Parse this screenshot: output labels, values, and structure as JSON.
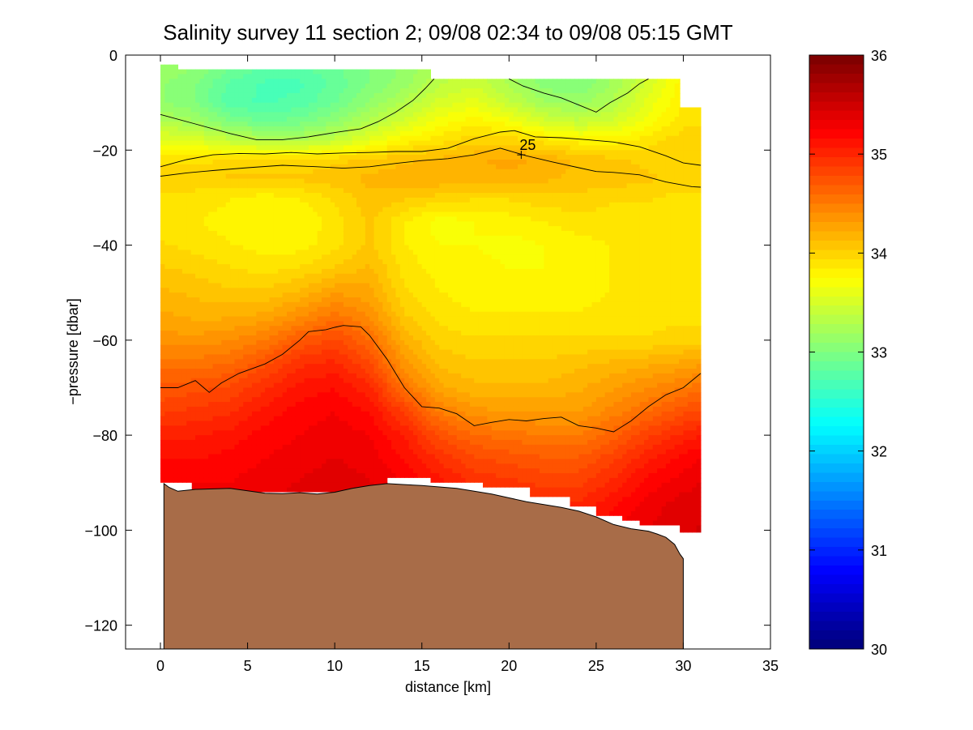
{
  "chart_data": {
    "type": "heatmap",
    "title": "Salinity survey 11 section 2; 09/08 02:34 to 09/08 05:15 GMT",
    "xlabel": "distance [km]",
    "ylabel": "−pressure [dbar]",
    "xlim": [
      -2,
      35
    ],
    "ylim": [
      -125,
      0
    ],
    "x_ticks": [
      0,
      5,
      10,
      15,
      20,
      25,
      30,
      35
    ],
    "y_ticks": [
      0,
      -20,
      -40,
      -60,
      -80,
      -100,
      -120
    ],
    "grid": false,
    "colorbar": {
      "range": [
        30,
        36
      ],
      "ticks": [
        30,
        31,
        32,
        33,
        34,
        35,
        36
      ],
      "colormap": "jet",
      "placement": "right"
    },
    "contour_label": {
      "text": "25",
      "x": 20.7,
      "y": -21
    },
    "contour_lines": [
      {
        "points": [
          [
            0,
            -12.5
          ],
          [
            2,
            -14.5
          ],
          [
            4,
            -16.5
          ],
          [
            5.5,
            -17.8
          ],
          [
            7,
            -17.8
          ],
          [
            8.5,
            -17.2
          ],
          [
            10,
            -16.3
          ],
          [
            11.5,
            -15.5
          ],
          [
            12.5,
            -14
          ],
          [
            13.5,
            -12
          ],
          [
            14.5,
            -9.5
          ],
          [
            15.2,
            -7
          ],
          [
            15.7,
            -5
          ]
        ]
      },
      {
        "points": [
          [
            20,
            -5
          ],
          [
            20.8,
            -6.5
          ],
          [
            22,
            -8
          ],
          [
            23,
            -9
          ],
          [
            24,
            -10.5
          ],
          [
            25,
            -12
          ],
          [
            25.8,
            -10
          ],
          [
            26.8,
            -8
          ],
          [
            27.5,
            -6
          ],
          [
            28,
            -5
          ]
        ]
      },
      {
        "points": [
          [
            0,
            -23.5
          ],
          [
            1.5,
            -22
          ],
          [
            3,
            -21
          ],
          [
            4.5,
            -20.7
          ],
          [
            6,
            -20.8
          ],
          [
            7.5,
            -20.5
          ],
          [
            9,
            -20.8
          ],
          [
            10.5,
            -20.6
          ],
          [
            12,
            -20.5
          ],
          [
            13.5,
            -20.3
          ],
          [
            15,
            -20.3
          ],
          [
            16.5,
            -19.6
          ],
          [
            18,
            -17.6
          ],
          [
            19.5,
            -16.2
          ],
          [
            20.3,
            -15.9
          ],
          [
            21.5,
            -17.2
          ],
          [
            23,
            -17.4
          ],
          [
            24.5,
            -17.8
          ],
          [
            26,
            -18.3
          ],
          [
            27.5,
            -19.3
          ],
          [
            29,
            -21.2
          ],
          [
            30,
            -22.7
          ],
          [
            31,
            -23.2
          ]
        ]
      },
      {
        "points": [
          [
            0,
            -25.5
          ],
          [
            1.5,
            -24.8
          ],
          [
            3,
            -24.3
          ],
          [
            5,
            -23.7
          ],
          [
            7,
            -23.2
          ],
          [
            9,
            -23.5
          ],
          [
            10.5,
            -23.8
          ],
          [
            12,
            -23.5
          ],
          [
            13.5,
            -22.8
          ],
          [
            15,
            -22.2
          ],
          [
            16.5,
            -21.8
          ],
          [
            18,
            -21
          ],
          [
            19.5,
            -19.6
          ],
          [
            21,
            -21.2
          ],
          [
            22.5,
            -22.5
          ],
          [
            24,
            -23.7
          ],
          [
            25,
            -24.5
          ],
          [
            26,
            -24.7
          ],
          [
            27.5,
            -25.2
          ],
          [
            29,
            -26.7
          ],
          [
            30.5,
            -27.7
          ],
          [
            31,
            -27.8
          ]
        ]
      },
      {
        "points": [
          [
            0,
            -70
          ],
          [
            1,
            -70
          ],
          [
            2,
            -68.5
          ],
          [
            2.8,
            -71
          ],
          [
            3.5,
            -69
          ],
          [
            4.5,
            -67
          ],
          [
            6,
            -65
          ],
          [
            7,
            -63
          ],
          [
            8,
            -60
          ],
          [
            8.5,
            -58.2
          ],
          [
            9.5,
            -57.8
          ],
          [
            10,
            -57.3
          ],
          [
            10.5,
            -56.9
          ],
          [
            11.5,
            -57.2
          ],
          [
            12,
            -59
          ],
          [
            13,
            -64
          ],
          [
            14,
            -70
          ],
          [
            15,
            -74
          ],
          [
            16,
            -74.3
          ],
          [
            17,
            -75.5
          ],
          [
            18,
            -78
          ],
          [
            19,
            -77.3
          ],
          [
            20,
            -76.7
          ],
          [
            21,
            -77
          ],
          [
            22,
            -76.5
          ],
          [
            23,
            -76.2
          ],
          [
            24,
            -78
          ],
          [
            25,
            -78.5
          ],
          [
            26,
            -79.3
          ],
          [
            27,
            -77
          ],
          [
            28,
            -74
          ],
          [
            29,
            -71.5
          ],
          [
            30,
            -70
          ],
          [
            31,
            -67
          ]
        ]
      }
    ],
    "bathymetry": {
      "fill_color": "#a86c48",
      "bottom_depth": -125,
      "points": [
        [
          0.2,
          -90.2
        ],
        [
          0.5,
          -91
        ],
        [
          1,
          -91.8
        ],
        [
          2,
          -91.4
        ],
        [
          3,
          -91.3
        ],
        [
          4,
          -91.2
        ],
        [
          5,
          -91.7
        ],
        [
          6,
          -92.2
        ],
        [
          7,
          -92.3
        ],
        [
          8,
          -92.1
        ],
        [
          9,
          -92.4
        ],
        [
          10,
          -92.0
        ],
        [
          11,
          -91.2
        ],
        [
          12,
          -90.6
        ],
        [
          13,
          -90.2
        ],
        [
          14,
          -90.4
        ],
        [
          15,
          -90.6
        ],
        [
          16,
          -90.9
        ],
        [
          17,
          -91.2
        ],
        [
          18,
          -91.8
        ],
        [
          19,
          -92.4
        ],
        [
          20,
          -93.2
        ],
        [
          21,
          -94.0
        ],
        [
          22,
          -94.6
        ],
        [
          23,
          -95.2
        ],
        [
          24,
          -96.0
        ],
        [
          25,
          -97.2
        ],
        [
          26,
          -98.8
        ],
        [
          27,
          -99.7
        ],
        [
          28,
          -100.2
        ],
        [
          28.5,
          -100.8
        ],
        [
          29,
          -101.5
        ],
        [
          29.5,
          -103
        ],
        [
          29.8,
          -105
        ],
        [
          30,
          -106
        ]
      ]
    },
    "data_domain": {
      "columns": [
        {
          "x0": 0,
          "x1": 1,
          "top": -2,
          "bottom": -90
        },
        {
          "x0": 1,
          "x1": 1.8,
          "top": -3,
          "bottom": -90
        },
        {
          "x0": 1.8,
          "x1": 13,
          "top": -3,
          "bottom": -92
        },
        {
          "x0": 13,
          "x1": 15.5,
          "top": -3,
          "bottom": -89
        },
        {
          "x0": 15.5,
          "x1": 18.5,
          "top": -5,
          "bottom": -90
        },
        {
          "x0": 18.5,
          "x1": 21.2,
          "top": -5,
          "bottom": -91
        },
        {
          "x0": 21.2,
          "x1": 23.5,
          "top": -5,
          "bottom": -93
        },
        {
          "x0": 23.5,
          "x1": 25,
          "top": -5,
          "bottom": -95
        },
        {
          "x0": 25,
          "x1": 26.5,
          "top": -5,
          "bottom": -97
        },
        {
          "x0": 26.5,
          "x1": 27.5,
          "top": -5,
          "bottom": -98
        },
        {
          "x0": 27.5,
          "x1": 29.8,
          "top": -5,
          "bottom": -99
        },
        {
          "x0": 29.8,
          "x1": 31,
          "top": -11,
          "bottom": -100.5
        }
      ]
    },
    "salinity_field": {
      "x": [
        0,
        2,
        4,
        6,
        8,
        10,
        12,
        14,
        16,
        18,
        20,
        22,
        24,
        26,
        28,
        30,
        31
      ],
      "y": [
        -2,
        -6,
        -10,
        -14,
        -18,
        -22,
        -26,
        -30,
        -35,
        -40,
        -45,
        -50,
        -55,
        -60,
        -65,
        -70,
        -75,
        -80,
        -85,
        -90,
        -95,
        -100
      ],
      "values": [
        [
          33.2,
          33.1,
          32.95,
          32.8,
          32.8,
          32.9,
          33.0,
          33.1,
          33.3,
          33.4,
          33.2,
          33.0,
          33.0,
          33.2,
          33.5,
          33.8,
          33.9
        ],
        [
          33.1,
          33.0,
          32.8,
          32.7,
          32.7,
          32.85,
          33.0,
          33.15,
          33.35,
          33.45,
          33.25,
          33.05,
          33.0,
          33.2,
          33.5,
          33.8,
          33.9
        ],
        [
          33.1,
          33.0,
          32.75,
          32.7,
          32.75,
          32.9,
          33.1,
          33.3,
          33.5,
          33.6,
          33.4,
          33.2,
          33.15,
          33.3,
          33.6,
          33.85,
          33.9
        ],
        [
          33.3,
          33.2,
          33.0,
          32.9,
          32.95,
          33.1,
          33.3,
          33.5,
          33.7,
          33.8,
          33.7,
          33.5,
          33.4,
          33.5,
          33.7,
          33.9,
          33.9
        ],
        [
          33.6,
          33.55,
          33.4,
          33.3,
          33.3,
          33.4,
          33.6,
          33.8,
          33.9,
          34.0,
          34.0,
          33.9,
          33.8,
          33.8,
          33.9,
          34.0,
          34.0
        ],
        [
          33.9,
          33.9,
          33.95,
          33.95,
          33.95,
          34.0,
          34.05,
          34.1,
          34.15,
          34.2,
          34.25,
          34.2,
          34.1,
          34.05,
          34.0,
          34.0,
          34.0
        ],
        [
          34.0,
          34.0,
          34.05,
          34.05,
          34.05,
          34.1,
          34.15,
          34.2,
          34.2,
          34.2,
          34.2,
          34.15,
          34.1,
          34.1,
          34.05,
          34.0,
          34.0
        ],
        [
          33.9,
          33.9,
          33.85,
          33.8,
          33.85,
          33.95,
          34.1,
          34.05,
          34.0,
          33.95,
          33.95,
          34.0,
          34.0,
          33.95,
          33.95,
          33.9,
          33.9
        ],
        [
          33.9,
          33.85,
          33.8,
          33.75,
          33.75,
          33.9,
          34.05,
          33.85,
          33.7,
          33.75,
          33.8,
          33.85,
          33.9,
          33.9,
          33.9,
          33.85,
          33.85
        ],
        [
          33.95,
          33.9,
          33.85,
          33.8,
          33.8,
          33.9,
          34.05,
          33.85,
          33.75,
          33.75,
          33.7,
          33.75,
          33.8,
          33.85,
          33.85,
          33.85,
          33.85
        ],
        [
          34.05,
          34.0,
          33.95,
          33.9,
          33.95,
          34.05,
          34.15,
          33.9,
          33.8,
          33.8,
          33.75,
          33.75,
          33.8,
          33.85,
          33.85,
          33.85,
          33.85
        ],
        [
          34.15,
          34.1,
          34.05,
          34.05,
          34.15,
          34.3,
          34.25,
          33.95,
          33.85,
          33.8,
          33.8,
          33.8,
          33.8,
          33.85,
          33.85,
          33.85,
          33.85
        ],
        [
          34.25,
          34.2,
          34.2,
          34.25,
          34.4,
          34.55,
          34.4,
          34.05,
          33.9,
          33.85,
          33.85,
          33.85,
          33.85,
          33.9,
          33.9,
          33.9,
          33.9
        ],
        [
          34.35,
          34.35,
          34.4,
          34.5,
          34.7,
          34.8,
          34.6,
          34.2,
          34.0,
          33.95,
          33.95,
          33.95,
          33.95,
          33.95,
          33.95,
          34.0,
          34.0
        ],
        [
          34.55,
          34.55,
          34.6,
          34.75,
          34.95,
          35.0,
          34.8,
          34.35,
          34.1,
          34.05,
          34.05,
          34.05,
          34.1,
          34.15,
          34.2,
          34.25,
          34.3
        ],
        [
          34.7,
          34.75,
          34.8,
          34.95,
          35.1,
          35.15,
          35.0,
          34.55,
          34.25,
          34.15,
          34.15,
          34.15,
          34.2,
          34.3,
          34.4,
          34.5,
          34.55
        ],
        [
          34.85,
          34.9,
          34.95,
          35.1,
          35.2,
          35.25,
          35.15,
          34.85,
          34.5,
          34.35,
          34.3,
          34.3,
          34.3,
          34.45,
          34.6,
          34.75,
          34.8
        ],
        [
          35.05,
          35.05,
          35.1,
          35.2,
          35.25,
          35.3,
          35.25,
          35.05,
          34.75,
          34.6,
          34.55,
          34.5,
          34.5,
          34.65,
          34.85,
          35.0,
          35.05
        ],
        [
          35.15,
          35.15,
          35.2,
          35.25,
          35.3,
          35.35,
          35.3,
          35.15,
          34.95,
          34.8,
          34.75,
          34.7,
          34.7,
          34.85,
          35.05,
          35.2,
          35.25
        ],
        [
          35.25,
          35.25,
          35.25,
          35.3,
          35.35,
          35.4,
          35.35,
          35.25,
          35.1,
          34.95,
          34.9,
          34.85,
          34.85,
          35.0,
          35.2,
          35.3,
          35.35
        ],
        [
          35.3,
          35.3,
          35.3,
          35.35,
          35.4,
          35.4,
          35.4,
          35.3,
          35.2,
          35.1,
          35.05,
          35.0,
          35.0,
          35.15,
          35.3,
          35.4,
          35.4
        ],
        [
          35.3,
          35.3,
          35.3,
          35.35,
          35.4,
          35.4,
          35.4,
          35.35,
          35.25,
          35.15,
          35.1,
          35.1,
          35.15,
          35.25,
          35.35,
          35.4,
          35.45
        ]
      ]
    }
  }
}
